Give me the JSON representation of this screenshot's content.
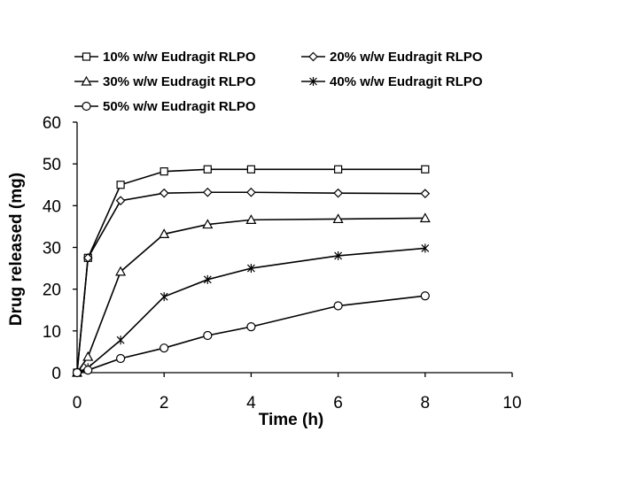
{
  "chart_data": {
    "type": "line",
    "title": "",
    "xlabel": "Time (h)",
    "ylabel": "Drug released (mg)",
    "xlim": [
      0,
      10
    ],
    "ylim": [
      0,
      60
    ],
    "xticks": [
      0,
      2,
      4,
      6,
      8,
      10
    ],
    "yticks": [
      0,
      10,
      20,
      30,
      40,
      50,
      60
    ],
    "grid": false,
    "legend_position": "top",
    "x": [
      0,
      0.25,
      1,
      2,
      3,
      4,
      6,
      8
    ],
    "series": [
      {
        "name": "10% w/w Eudragit RLPO",
        "marker": "square",
        "values": [
          0,
          27.5,
          45.0,
          48.2,
          48.7,
          48.7,
          48.7,
          48.7
        ]
      },
      {
        "name": "20% w/w Eudragit RLPO",
        "marker": "diamond",
        "values": [
          0,
          27.5,
          41.2,
          43.0,
          43.2,
          43.2,
          43.0,
          42.9
        ]
      },
      {
        "name": "30% w/w Eudragit RLPO",
        "marker": "triangle",
        "values": [
          0,
          3.8,
          24.2,
          33.2,
          35.5,
          36.6,
          36.8,
          37.0
        ]
      },
      {
        "name": "40% w/w Eudragit RLPO",
        "marker": "asterisk",
        "values": [
          0,
          1.2,
          7.8,
          18.2,
          22.3,
          25.0,
          28.0,
          29.8
        ]
      },
      {
        "name": "50% w/w Eudragit RLPO",
        "marker": "circle",
        "values": [
          0,
          0.6,
          3.4,
          5.9,
          8.9,
          11.0,
          16.0,
          18.4
        ]
      }
    ]
  }
}
